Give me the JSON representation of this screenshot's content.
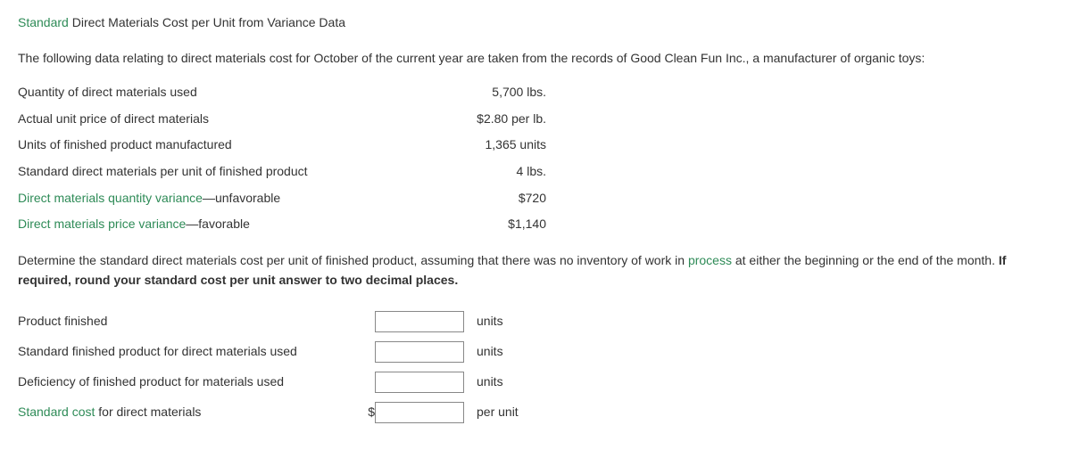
{
  "title": {
    "green": "Standard",
    "black": "Direct Materials Cost per Unit from Variance Data"
  },
  "intro": "The following data relating to direct materials cost for October of the current year are taken from the records of Good Clean Fun Inc., a manufacturer of organic toys:",
  "data_rows": [
    {
      "label": "Quantity of direct materials used",
      "value": "5,700 lbs.",
      "link": false
    },
    {
      "label": "Actual unit price of direct materials",
      "value": "$2.80 per lb.",
      "link": false
    },
    {
      "label": "Units of finished product manufactured",
      "value": "1,365 units",
      "link": false
    },
    {
      "label": "Standard direct materials per unit of finished product",
      "value": "4 lbs.",
      "link": false
    },
    {
      "label_pre": "Direct materials quantity variance",
      "label_post": "—unfavorable",
      "value": "$720",
      "link": true
    },
    {
      "label_pre": "Direct materials price variance",
      "label_post": "—favorable",
      "value": "$1,140",
      "link": true
    }
  ],
  "instruction": {
    "part1": "Determine the standard direct materials cost per unit of finished product, assuming that there was no inventory of work in ",
    "link": "process",
    "part2": " at either the beginning or the end of the month. ",
    "bold": "If required, round your standard cost per unit answer to two decimal places."
  },
  "answers": [
    {
      "label": "Product finished",
      "prefix": "",
      "unit": "units",
      "link": false
    },
    {
      "label": "Standard finished product for direct materials used",
      "prefix": "",
      "unit": "units",
      "link": false
    },
    {
      "label": "Deficiency of finished product for materials used",
      "prefix": "",
      "unit": "units",
      "link": false
    },
    {
      "label_pre": "Standard cost",
      "label_post": " for direct materials",
      "prefix": "$",
      "unit": "per unit",
      "link": true
    }
  ],
  "colors": {
    "link": "#2e8b57",
    "text": "#333333",
    "input_border": "#888888"
  }
}
